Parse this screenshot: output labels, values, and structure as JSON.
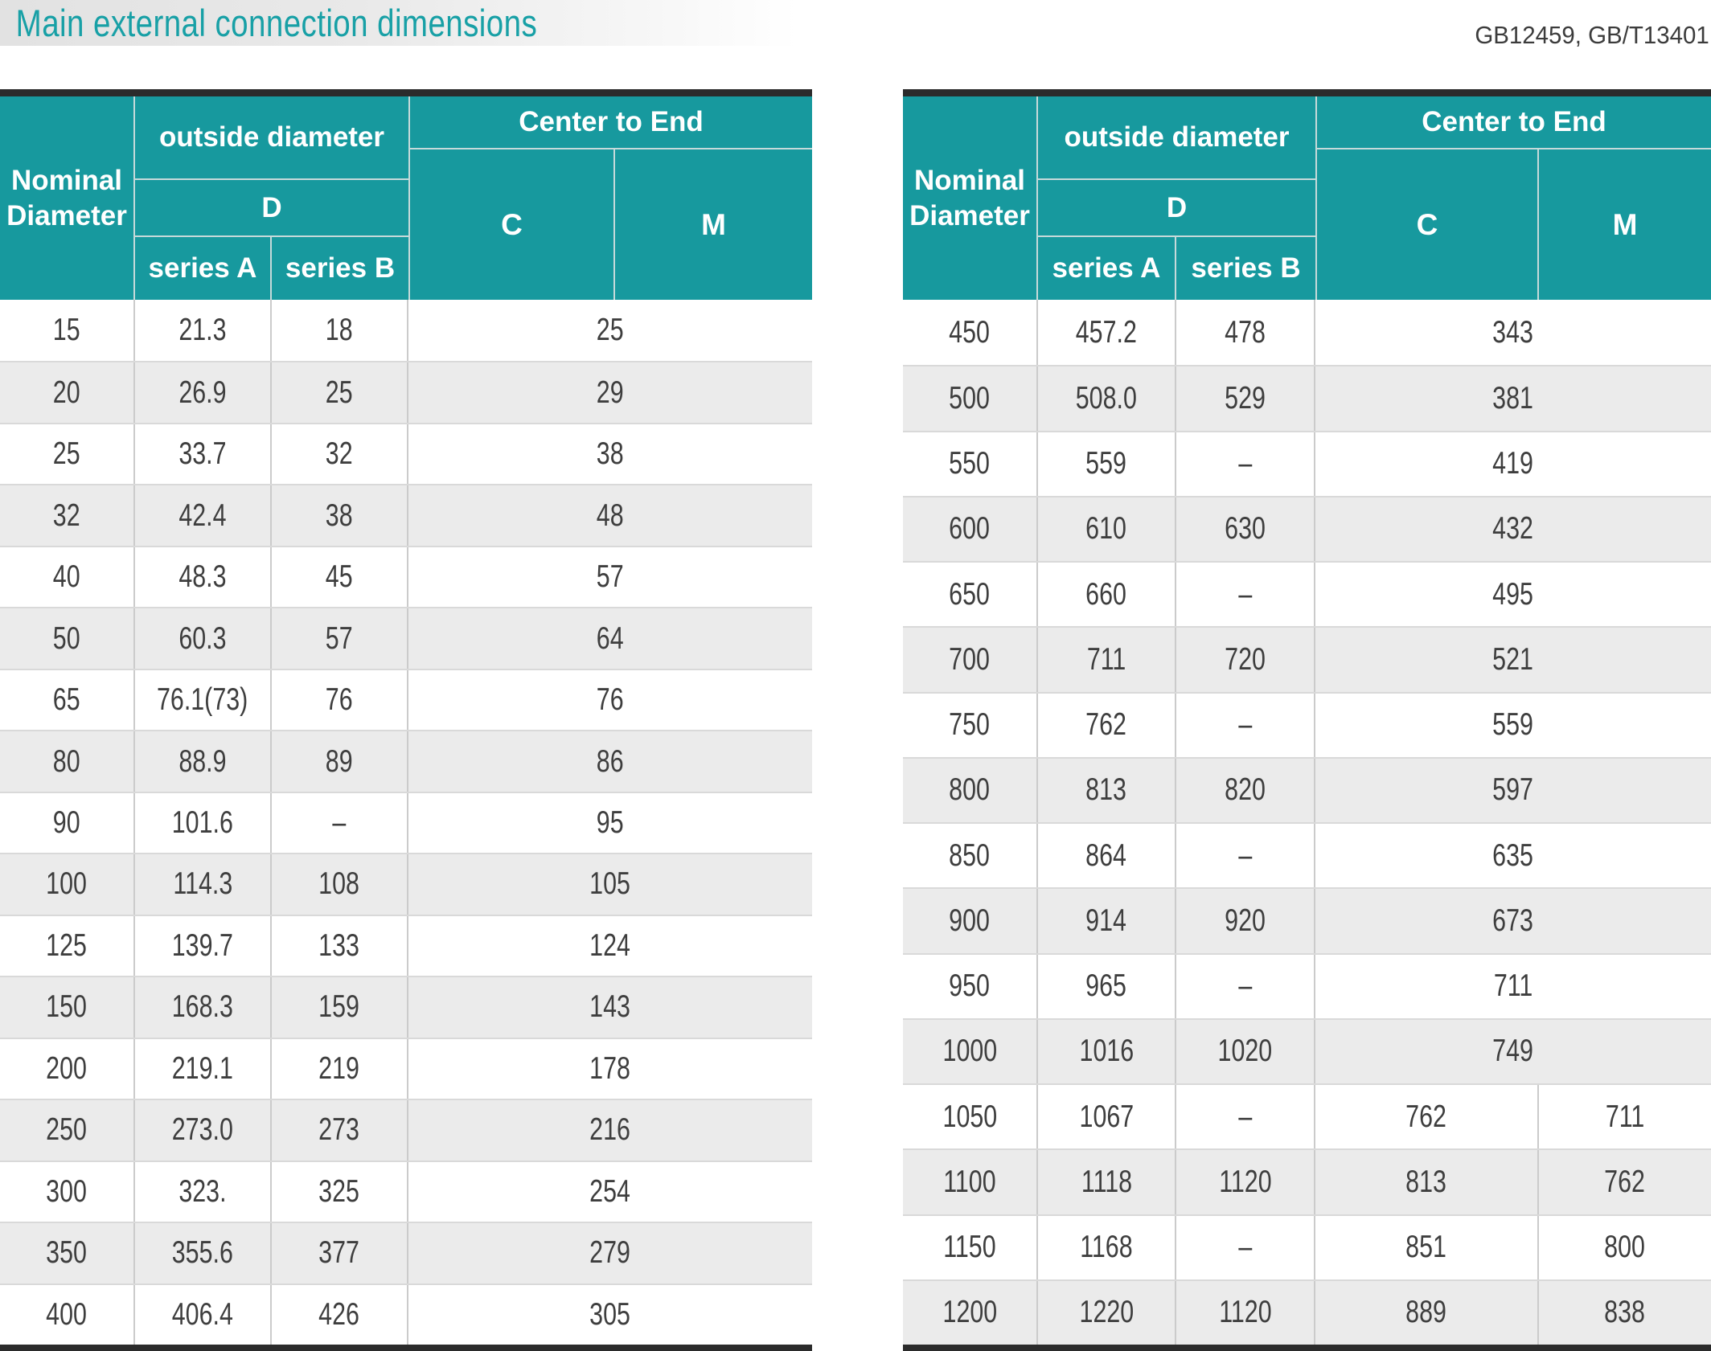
{
  "page": {
    "title": "Main external connection dimensions",
    "standards": "GB12459, GB/T13401"
  },
  "table_header": {
    "nominal_diameter": "Nominal Diameter",
    "outside_diameter": "outside diameter",
    "d": "D",
    "series_a": "series A",
    "series_b": "series B",
    "center_to_end": "Center to End",
    "c": "C",
    "m": "M"
  },
  "left_table": {
    "rows": [
      {
        "nominal": "15",
        "series_a": "21.3",
        "series_b": "18",
        "center_to_end": "25"
      },
      {
        "nominal": "20",
        "series_a": "26.9",
        "series_b": "25",
        "center_to_end": "29"
      },
      {
        "nominal": "25",
        "series_a": "33.7",
        "series_b": "32",
        "center_to_end": "38"
      },
      {
        "nominal": "32",
        "series_a": "42.4",
        "series_b": "38",
        "center_to_end": "48"
      },
      {
        "nominal": "40",
        "series_a": "48.3",
        "series_b": "45",
        "center_to_end": "57"
      },
      {
        "nominal": "50",
        "series_a": "60.3",
        "series_b": "57",
        "center_to_end": "64"
      },
      {
        "nominal": "65",
        "series_a": "76.1(73)",
        "series_b": "76",
        "center_to_end": "76"
      },
      {
        "nominal": "80",
        "series_a": "88.9",
        "series_b": "89",
        "center_to_end": "86"
      },
      {
        "nominal": "90",
        "series_a": "101.6",
        "series_b": "–",
        "center_to_end": "95"
      },
      {
        "nominal": "100",
        "series_a": "114.3",
        "series_b": "108",
        "center_to_end": "105"
      },
      {
        "nominal": "125",
        "series_a": "139.7",
        "series_b": "133",
        "center_to_end": "124"
      },
      {
        "nominal": "150",
        "series_a": "168.3",
        "series_b": "159",
        "center_to_end": "143"
      },
      {
        "nominal": "200",
        "series_a": "219.1",
        "series_b": "219",
        "center_to_end": "178"
      },
      {
        "nominal": "250",
        "series_a": "273.0",
        "series_b": "273",
        "center_to_end": "216"
      },
      {
        "nominal": "300",
        "series_a": "323.",
        "series_b": "325",
        "center_to_end": "254"
      },
      {
        "nominal": "350",
        "series_a": "355.6",
        "series_b": "377",
        "center_to_end": "279"
      },
      {
        "nominal": "400",
        "series_a": "406.4",
        "series_b": "426",
        "center_to_end": "305"
      }
    ]
  },
  "right_table": {
    "rows": [
      {
        "nominal": "450",
        "series_a": "457.2",
        "series_b": "478",
        "center_to_end": "343"
      },
      {
        "nominal": "500",
        "series_a": "508.0",
        "series_b": "529",
        "center_to_end": "381"
      },
      {
        "nominal": "550",
        "series_a": "559",
        "series_b": "–",
        "center_to_end": "419"
      },
      {
        "nominal": "600",
        "series_a": "610",
        "series_b": "630",
        "center_to_end": "432"
      },
      {
        "nominal": "650",
        "series_a": "660",
        "series_b": "–",
        "center_to_end": "495"
      },
      {
        "nominal": "700",
        "series_a": "711",
        "series_b": "720",
        "center_to_end": "521"
      },
      {
        "nominal": "750",
        "series_a": "762",
        "series_b": "–",
        "center_to_end": "559"
      },
      {
        "nominal": "800",
        "series_a": "813",
        "series_b": "820",
        "center_to_end": "597"
      },
      {
        "nominal": "850",
        "series_a": "864",
        "series_b": "–",
        "center_to_end": "635"
      },
      {
        "nominal": "900",
        "series_a": "914",
        "series_b": "920",
        "center_to_end": "673"
      },
      {
        "nominal": "950",
        "series_a": "965",
        "series_b": "–",
        "center_to_end": "711"
      },
      {
        "nominal": "1000",
        "series_a": "1016",
        "series_b": "1020",
        "center_to_end": "749"
      },
      {
        "nominal": "1050",
        "series_a": "1067",
        "series_b": "–",
        "c": "762",
        "m": "711"
      },
      {
        "nominal": "1100",
        "series_a": "1118",
        "series_b": "1120",
        "c": "813",
        "m": "762"
      },
      {
        "nominal": "1150",
        "series_a": "1168",
        "series_b": "–",
        "c": "851",
        "m": "800"
      },
      {
        "nominal": "1200",
        "series_a": "1220",
        "series_b": "1120",
        "c": "889",
        "m": "838"
      }
    ]
  },
  "colors": {
    "header_teal": "#17999e",
    "title_teal": "#18a0a6",
    "row_alt_gray": "#ebebeb",
    "dark_border": "#2b2b2b",
    "header_divider": "#c6dada"
  }
}
